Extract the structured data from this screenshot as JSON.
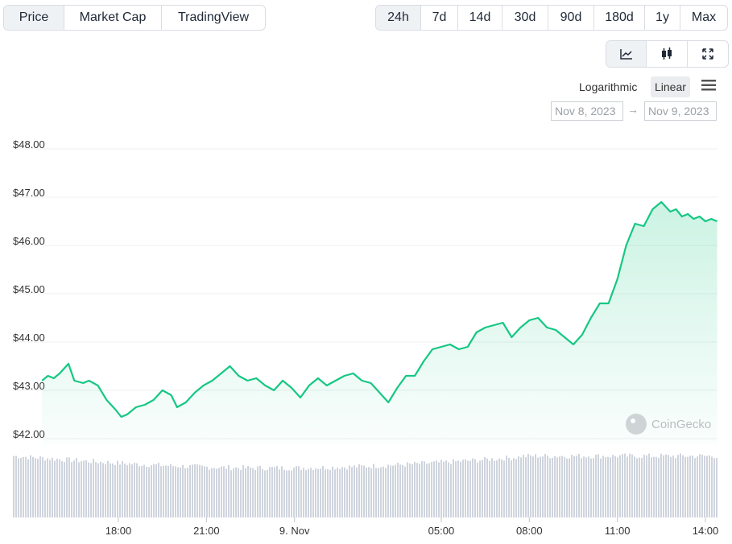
{
  "tabs": [
    {
      "label": "Price",
      "active": true
    },
    {
      "label": "Market Cap",
      "active": false
    },
    {
      "label": "TradingView",
      "active": false
    }
  ],
  "ranges": [
    {
      "label": "24h",
      "active": true
    },
    {
      "label": "7d",
      "active": false
    },
    {
      "label": "14d",
      "active": false
    },
    {
      "label": "30d",
      "active": false
    },
    {
      "label": "90d",
      "active": false
    },
    {
      "label": "180d",
      "active": false
    },
    {
      "label": "1y",
      "active": false
    },
    {
      "label": "Max",
      "active": false
    }
  ],
  "view_icons": [
    "line-chart-icon",
    "candlestick-icon",
    "fullscreen-icon"
  ],
  "scale": {
    "logarithmic": "Logarithmic",
    "linear": "Linear",
    "selected": "Linear"
  },
  "menu_icon": "hamburger-menu-icon",
  "date_range": {
    "from": "Nov 8, 2023",
    "arrow": "→",
    "to": "Nov 9, 2023"
  },
  "watermark": {
    "text": "CoinGecko",
    "icon": "gecko-logo-icon"
  },
  "colors": {
    "line": "#16c784",
    "volume": "#cfd4dd",
    "grid": "#eef0f2"
  },
  "chart_data": {
    "type": "line",
    "title": "",
    "xlabel": "",
    "ylabel": "",
    "ylim": [
      41.7,
      48.2
    ],
    "yticks": [
      42,
      43,
      44,
      45,
      46,
      47,
      48
    ],
    "ytick_labels": [
      "$42.00",
      "$43.00",
      "$44.00",
      "$45.00",
      "$46.00",
      "$47.00",
      "$48.00"
    ],
    "x_range_hours": [
      15.4,
      14.3
    ],
    "xticks": [
      {
        "label": "18:00",
        "hour": 18.0
      },
      {
        "label": "21:00",
        "hour": 21.0
      },
      {
        "label": "9. Nov",
        "hour": 24.0
      },
      {
        "label": "05:00",
        "hour": 29.0
      },
      {
        "label": "08:00",
        "hour": 32.0
      },
      {
        "label": "11:00",
        "hour": 35.0
      },
      {
        "label": "14:00",
        "hour": 38.0
      }
    ],
    "series": [
      {
        "x_hours": [
          15.4,
          15.6,
          15.8,
          16.0,
          16.3,
          16.5,
          16.8,
          17.0,
          17.3,
          17.6,
          17.9,
          18.1,
          18.3,
          18.6,
          18.9,
          19.2,
          19.5,
          19.8,
          20.0,
          20.3,
          20.6,
          20.9,
          21.2,
          21.5,
          21.8,
          22.1,
          22.4,
          22.7,
          23.0,
          23.3,
          23.6,
          23.9,
          24.2,
          24.5,
          24.8,
          25.1,
          25.4,
          25.7,
          26.0,
          26.3,
          26.6,
          26.9,
          27.2,
          27.5,
          27.8,
          28.1,
          28.4,
          28.7,
          29.0,
          29.3,
          29.6,
          29.9,
          30.2,
          30.5,
          30.8,
          31.1,
          31.4,
          31.7,
          32.0,
          32.3,
          32.6,
          32.9,
          33.2,
          33.5,
          33.8,
          34.1,
          34.4,
          34.7,
          35.0,
          35.3,
          35.6,
          35.9,
          36.2,
          36.5,
          36.8,
          37.0,
          37.2,
          37.4,
          37.6,
          37.8,
          38.0,
          38.2,
          38.4
        ],
        "y": [
          43.2,
          43.3,
          43.25,
          43.35,
          43.55,
          43.2,
          43.15,
          43.2,
          43.1,
          42.8,
          42.6,
          42.45,
          42.5,
          42.65,
          42.7,
          42.8,
          43.0,
          42.9,
          42.65,
          42.75,
          42.95,
          43.1,
          43.2,
          43.35,
          43.5,
          43.3,
          43.2,
          43.25,
          43.1,
          43.0,
          43.2,
          43.05,
          42.85,
          43.1,
          43.25,
          43.1,
          43.2,
          43.3,
          43.35,
          43.2,
          43.15,
          42.95,
          42.75,
          43.05,
          43.3,
          43.3,
          43.6,
          43.85,
          43.9,
          43.95,
          43.85,
          43.9,
          44.2,
          44.3,
          44.35,
          44.4,
          44.1,
          44.3,
          44.45,
          44.5,
          44.3,
          44.25,
          44.1,
          43.95,
          44.15,
          44.5,
          44.8,
          44.8,
          45.3,
          46.0,
          46.45,
          46.4,
          46.75,
          46.9,
          46.7,
          46.75,
          46.6,
          46.65,
          46.55,
          46.6,
          46.5,
          46.55,
          46.5
        ]
      }
    ],
    "volume_note_shown": false
  }
}
